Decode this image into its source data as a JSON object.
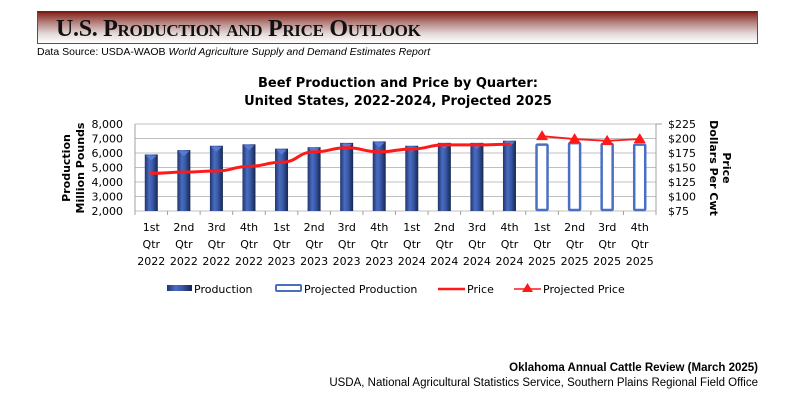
{
  "header": {
    "title": "U.S. Production and Price Outlook",
    "source_prefix": "Data Source: USDA-WAOB ",
    "source_italic": "World Agriculture Supply and Demand Estimates Report"
  },
  "footer": {
    "line1": "Oklahoma Annual Cattle Review (March 2025)",
    "line2": "USDA, National Agricultural Statistics Service, Southern Plains Regional Field Office"
  },
  "colors": {
    "bar_fill": "#3a5aa8",
    "bar_dark": "#1f3470",
    "projected_outline": "#4a6fc4",
    "price_line": "#ff1a1a",
    "grid": "#bfbfbf",
    "banner_dark": "#7a1f18"
  },
  "chart_data": {
    "type": "bar",
    "title_line1": "Beef Production and Price by Quarter:",
    "title_line2": "United States, 2022-2024, Projected 2025",
    "categories": [
      [
        "1st",
        "Qtr",
        "2022"
      ],
      [
        "2nd",
        "Qtr",
        "2022"
      ],
      [
        "3rd",
        "Qtr",
        "2022"
      ],
      [
        "4th",
        "Qtr",
        "2022"
      ],
      [
        "1st",
        "Qtr",
        "2023"
      ],
      [
        "2nd",
        "Qtr",
        "2023"
      ],
      [
        "3rd",
        "Qtr",
        "2023"
      ],
      [
        "4th",
        "Qtr",
        "2023"
      ],
      [
        "1st",
        "Qtr",
        "2024"
      ],
      [
        "2nd",
        "Qtr",
        "2024"
      ],
      [
        "3rd",
        "Qtr",
        "2024"
      ],
      [
        "4th",
        "Qtr",
        "2024"
      ],
      [
        "1st",
        "Qtr",
        "2025"
      ],
      [
        "2nd",
        "Qtr",
        "2025"
      ],
      [
        "3rd",
        "Qtr",
        "2025"
      ],
      [
        "4th",
        "Qtr",
        "2025"
      ]
    ],
    "ylabel_left": [
      "Production",
      "Million Pounds"
    ],
    "ylabel_right": [
      "Price",
      "Dollars Per Cwt"
    ],
    "ylim_left": [
      2000,
      8000
    ],
    "yticks_left": [
      "8,000",
      "7,000",
      "6,000",
      "5,000",
      "4,000",
      "3,000",
      "2,000"
    ],
    "ylim_right": [
      75,
      225
    ],
    "yticks_right": [
      "$225",
      "$200",
      "$175",
      "$150",
      "$125",
      "$100",
      "$75"
    ],
    "grid": true,
    "legend_position": "bottom",
    "series": [
      {
        "name": "Production",
        "kind": "bar",
        "values": [
          5900,
          6200,
          6500,
          6600,
          6300,
          6400,
          6700,
          6800,
          6500,
          6700,
          6700,
          6850,
          null,
          null,
          null,
          null
        ]
      },
      {
        "name": "Projected Production",
        "kind": "bar-outline",
        "values": [
          null,
          null,
          null,
          null,
          null,
          null,
          null,
          null,
          null,
          null,
          null,
          null,
          6650,
          6750,
          6700,
          6650
        ]
      },
      {
        "name": "Price",
        "kind": "line",
        "axis": "right",
        "values": [
          140,
          142,
          144,
          152,
          159,
          177,
          184,
          177,
          182,
          189,
          189,
          190,
          null,
          null,
          null,
          null
        ]
      },
      {
        "name": "Projected Price",
        "kind": "line-marker",
        "axis": "right",
        "values": [
          null,
          null,
          null,
          null,
          null,
          null,
          null,
          null,
          null,
          null,
          null,
          null,
          204,
          199,
          196,
          199
        ]
      }
    ]
  }
}
